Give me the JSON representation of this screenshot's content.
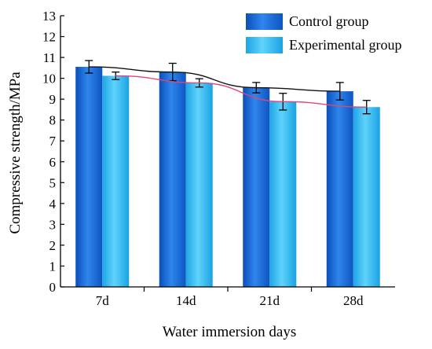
{
  "chart_data": {
    "type": "bar",
    "categories": [
      "7d",
      "14d",
      "21d",
      "28d"
    ],
    "series": [
      {
        "name": "Control group",
        "values": [
          10.55,
          10.3,
          9.55,
          9.38
        ],
        "errors": [
          0.3,
          0.42,
          0.25,
          0.42
        ],
        "color": "#1f6fd8",
        "trend_color": "#111111"
      },
      {
        "name": "Experimental group",
        "values": [
          10.12,
          9.78,
          8.88,
          8.62
        ],
        "errors": [
          0.18,
          0.2,
          0.4,
          0.32
        ],
        "color": "#2ab4ee",
        "trend_color": "#e0457b"
      }
    ],
    "xlabel": "Water immersion days",
    "ylabel": "Compressive strength/MPa",
    "ylim": [
      0,
      13
    ],
    "yticks": [
      "0",
      "1",
      "2",
      "3",
      "4",
      "5",
      "6",
      "7",
      "8",
      "9",
      "10",
      "11",
      "12",
      "13"
    ],
    "grid": false,
    "legend_position": "top-right"
  }
}
